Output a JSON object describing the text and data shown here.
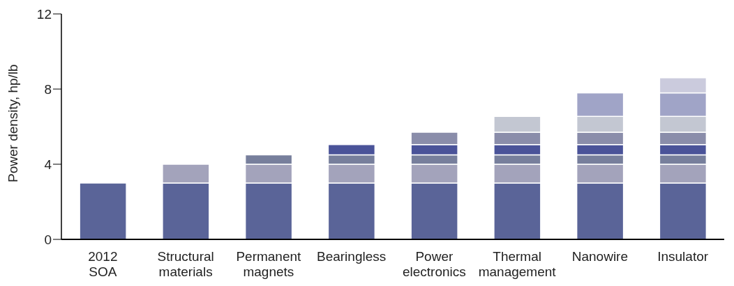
{
  "chart_data": {
    "type": "bar",
    "stacked": true,
    "ylabel": "Power density, hp/lb",
    "categories": [
      "2012\nSOA",
      "Structural\nmaterials",
      "Permanent\nmagnets",
      "Bearingless",
      "Power\nelectronics",
      "Thermal\nmanagement",
      "Nanowire",
      "Insulator"
    ],
    "series": [
      {
        "color": "#5a6498",
        "values": [
          3,
          3,
          3,
          3,
          3,
          3,
          3,
          3
        ]
      },
      {
        "color": "#a3a3bb",
        "values": [
          null,
          1,
          1,
          1,
          1,
          1,
          1,
          1
        ]
      },
      {
        "color": "#777f9c",
        "values": [
          null,
          null,
          0.5,
          0.5,
          0.5,
          0.5,
          0.5,
          0.5
        ]
      },
      {
        "color": "#4a5399",
        "values": [
          null,
          null,
          null,
          0.55,
          0.55,
          0.55,
          0.55,
          0.55
        ]
      },
      {
        "color": "#8a8daa",
        "values": [
          null,
          null,
          null,
          null,
          0.65,
          0.65,
          0.65,
          0.65
        ]
      },
      {
        "color": "#c3c7d2",
        "values": [
          null,
          null,
          null,
          null,
          null,
          0.85,
          0.85,
          0.85
        ]
      },
      {
        "color": "#a0a4c7",
        "values": [
          null,
          null,
          null,
          null,
          null,
          null,
          1.25,
          1.25
        ]
      },
      {
        "color": "#cbcbdd",
        "values": [
          null,
          null,
          null,
          null,
          null,
          null,
          null,
          0.8
        ]
      }
    ],
    "ylim": [
      0,
      12
    ],
    "yticks": [
      0,
      4,
      8,
      12
    ],
    "grid": false,
    "legend": false
  }
}
